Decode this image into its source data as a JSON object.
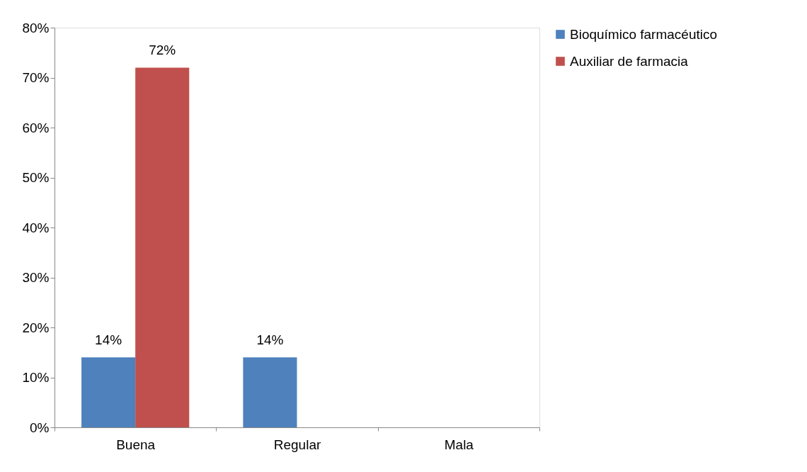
{
  "chart_data": {
    "type": "bar",
    "categories": [
      "Buena",
      "Regular",
      "Mala"
    ],
    "series": [
      {
        "name": "Bioquímico farmacéutico",
        "color": "#4f81bd",
        "values": [
          14,
          14,
          null
        ],
        "value_labels": [
          "14%",
          "14%",
          null
        ]
      },
      {
        "name": "Auxiliar de farmacia",
        "color": "#c0504d",
        "values": [
          72,
          null,
          null
        ],
        "value_labels": [
          "72%",
          null,
          null
        ]
      }
    ],
    "ylim": [
      0,
      80
    ],
    "yticks": [
      {
        "value": 0,
        "label": "0%"
      },
      {
        "value": 10,
        "label": "10%"
      },
      {
        "value": 20,
        "label": "20%"
      },
      {
        "value": 30,
        "label": "30%"
      },
      {
        "value": 40,
        "label": "40%"
      },
      {
        "value": 50,
        "label": "50%"
      },
      {
        "value": 60,
        "label": "60%"
      },
      {
        "value": 70,
        "label": "70%"
      },
      {
        "value": 80,
        "label": "80%"
      }
    ],
    "grid": false,
    "legend": "right"
  }
}
